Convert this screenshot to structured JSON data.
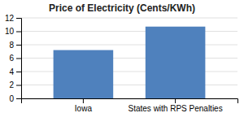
{
  "chart_data": {
    "type": "bar",
    "title": "Price of Electricity (Cents/KWh)",
    "categories": [
      "Iowa",
      "States with RPS Penalties"
    ],
    "values": [
      7.2,
      10.7
    ],
    "color": "#4f81bd",
    "ylim": [
      0,
      12
    ],
    "yticks": [
      0,
      2,
      4,
      6,
      8,
      10,
      12
    ],
    "grid": true
  }
}
